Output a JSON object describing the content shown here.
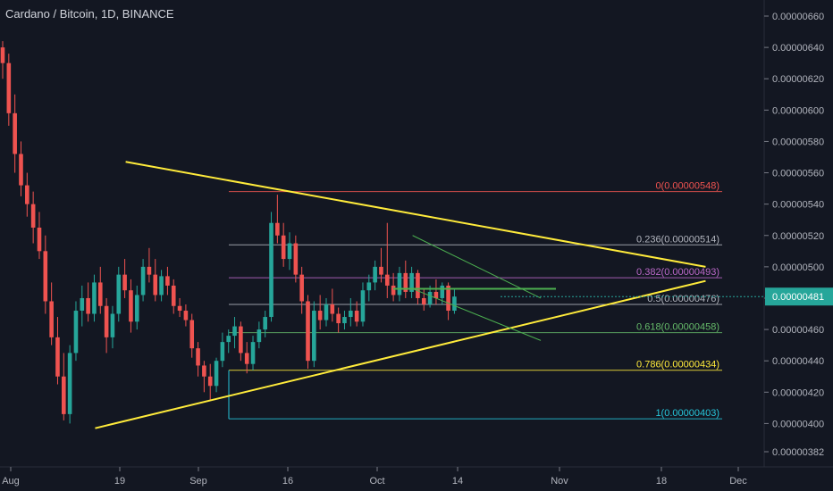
{
  "header": {
    "title": "Cardano / Bitcoin, 1D, BINANCE"
  },
  "colors": {
    "background": "#131722",
    "up": "#26a69a",
    "down": "#ef5350",
    "trendline": "#ffeb3b",
    "price_tag": "#26a69a"
  },
  "chart_data": {
    "type": "candlestick",
    "title": "Cardano / Bitcoin, 1D, BINANCE",
    "xlabel": "",
    "ylabel": "",
    "ylim": [
      3.78e-06,
      6.68e-06
    ],
    "yticks": [
      "0.00000660",
      "0.00000640",
      "0.00000620",
      "0.00000600",
      "0.00000580",
      "0.00000560",
      "0.00000540",
      "0.00000520",
      "0.00000500",
      "0.00000480",
      "0.00000460",
      "0.00000440",
      "0.00000420",
      "0.00000400",
      "0.00000382"
    ],
    "xticks": [
      "Aug",
      "19",
      "Sep",
      "16",
      "Oct",
      "14",
      "Nov",
      "18",
      "Dec"
    ],
    "grid": false,
    "last_price": "0.00000481",
    "candles_ohlc": [
      [
        6.4e-06,
        6.44e-06,
        6.2e-06,
        6.3e-06
      ],
      [
        6.3e-06,
        6.36e-06,
        5.9e-06,
        5.98e-06
      ],
      [
        5.98e-06,
        6.1e-06,
        5.6e-06,
        5.72e-06
      ],
      [
        5.72e-06,
        5.8e-06,
        5.45e-06,
        5.52e-06
      ],
      [
        5.52e-06,
        5.6e-06,
        5.32e-06,
        5.4e-06
      ],
      [
        5.4e-06,
        5.48e-06,
        5.15e-06,
        5.25e-06
      ],
      [
        5.25e-06,
        5.35e-06,
        5.05e-06,
        5.1e-06
      ],
      [
        5.1e-06,
        5.2e-06,
        4.7e-06,
        4.78e-06
      ],
      [
        4.78e-06,
        4.9e-06,
        4.5e-06,
        4.55e-06
      ],
      [
        4.55e-06,
        4.68e-06,
        4.25e-06,
        4.3e-06
      ],
      [
        4.3e-06,
        4.45e-06,
        4.02e-06,
        4.06e-06
      ],
      [
        4.06e-06,
        4.5e-06,
        4e-06,
        4.45e-06
      ],
      [
        4.45e-06,
        4.78e-06,
        4.4e-06,
        4.72e-06
      ],
      [
        4.72e-06,
        4.88e-06,
        4.62e-06,
        4.8e-06
      ],
      [
        4.8e-06,
        4.9e-06,
        4.65e-06,
        4.7e-06
      ],
      [
        4.7e-06,
        4.95e-06,
        4.65e-06,
        4.9e-06
      ],
      [
        4.9e-06,
        5e-06,
        4.7e-06,
        4.75e-06
      ],
      [
        4.75e-06,
        4.8e-06,
        4.45e-06,
        4.55e-06
      ],
      [
        4.55e-06,
        4.75e-06,
        4.48e-06,
        4.7e-06
      ],
      [
        4.7e-06,
        5e-06,
        4.65e-06,
        4.95e-06
      ],
      [
        4.95e-06,
        5.05e-06,
        4.8e-06,
        4.85e-06
      ],
      [
        4.85e-06,
        4.92e-06,
        4.58e-06,
        4.65e-06
      ],
      [
        4.65e-06,
        4.88e-06,
        4.6e-06,
        4.82e-06
      ],
      [
        4.82e-06,
        5.05e-06,
        4.78e-06,
        5e-06
      ],
      [
        5e-06,
        5.12e-06,
        4.9e-06,
        4.95e-06
      ],
      [
        4.95e-06,
        5.05e-06,
        4.78e-06,
        4.82e-06
      ],
      [
        4.82e-06,
        4.98e-06,
        4.78e-06,
        4.94e-06
      ],
      [
        4.94e-06,
        5e-06,
        4.82e-06,
        4.88e-06
      ],
      [
        4.88e-06,
        4.92e-06,
        4.7e-06,
        4.75e-06
      ],
      [
        4.75e-06,
        4.8e-06,
        4.68e-06,
        4.72e-06
      ],
      [
        4.72e-06,
        4.76e-06,
        4.62e-06,
        4.66e-06
      ],
      [
        4.66e-06,
        4.7e-06,
        4.42e-06,
        4.48e-06
      ],
      [
        4.48e-06,
        4.52e-06,
        4.3e-06,
        4.37e-06
      ],
      [
        4.37e-06,
        4.4e-06,
        4.2e-06,
        4.3e-06
      ],
      [
        4.3e-06,
        4.38e-06,
        4.15e-06,
        4.24e-06
      ],
      [
        4.24e-06,
        4.42e-06,
        4.2e-06,
        4.4e-06
      ],
      [
        4.4e-06,
        4.58e-06,
        4.36e-06,
        4.52e-06
      ],
      [
        4.52e-06,
        4.6e-06,
        4.45e-06,
        4.56e-06
      ],
      [
        4.56e-06,
        4.68e-06,
        4.48e-06,
        4.62e-06
      ],
      [
        4.62e-06,
        4.65e-06,
        4.4e-06,
        4.45e-06
      ],
      [
        4.45e-06,
        4.52e-06,
        4.32e-06,
        4.38e-06
      ],
      [
        4.38e-06,
        4.56e-06,
        4.34e-06,
        4.52e-06
      ],
      [
        4.52e-06,
        4.65e-06,
        4.48e-06,
        4.6e-06
      ],
      [
        4.6e-06,
        4.72e-06,
        4.55e-06,
        4.68e-06
      ],
      [
        4.68e-06,
        5.35e-06,
        4.65e-06,
        5.28e-06
      ],
      [
        5.28e-06,
        5.46e-06,
        5.15e-06,
        5.2e-06
      ],
      [
        5.2e-06,
        5.28e-06,
        5e-06,
        5.05e-06
      ],
      [
        5.05e-06,
        5.22e-06,
        4.98e-06,
        5.15e-06
      ],
      [
        5.15e-06,
        5.2e-06,
        4.9e-06,
        4.95e-06
      ],
      [
        4.95e-06,
        5e-06,
        4.7e-06,
        4.78e-06
      ],
      [
        4.78e-06,
        4.82e-06,
        4.35e-06,
        4.4e-06
      ],
      [
        4.4e-06,
        4.78e-06,
        4.36e-06,
        4.72e-06
      ],
      [
        4.72e-06,
        4.82e-06,
        4.6e-06,
        4.66e-06
      ],
      [
        4.66e-06,
        4.8e-06,
        4.62e-06,
        4.76e-06
      ],
      [
        4.76e-06,
        4.86e-06,
        4.65e-06,
        4.7e-06
      ],
      [
        4.7e-06,
        4.74e-06,
        4.58e-06,
        4.64e-06
      ],
      [
        4.64e-06,
        4.72e-06,
        4.6e-06,
        4.68e-06
      ],
      [
        4.68e-06,
        4.8e-06,
        4.62e-06,
        4.72e-06
      ],
      [
        4.72e-06,
        4.78e-06,
        4.62e-06,
        4.65e-06
      ],
      [
        4.65e-06,
        4.9e-06,
        4.62e-06,
        4.85e-06
      ],
      [
        4.85e-06,
        4.95e-06,
        4.78e-06,
        4.9e-06
      ],
      [
        4.9e-06,
        5.04e-06,
        4.85e-06,
        5e-06
      ],
      [
        5e-06,
        5.12e-06,
        4.9e-06,
        4.95e-06
      ],
      [
        4.95e-06,
        5.28e-06,
        4.8e-06,
        4.88e-06
      ],
      [
        4.88e-06,
        4.96e-06,
        4.78e-06,
        4.82e-06
      ],
      [
        4.82e-06,
        5e-06,
        4.78e-06,
        4.96e-06
      ],
      [
        4.96e-06,
        5.04e-06,
        4.8e-06,
        4.84e-06
      ],
      [
        4.84e-06,
        5e-06,
        4.8e-06,
        4.96e-06
      ],
      [
        4.96e-06,
        4.98e-06,
        4.76e-06,
        4.8e-06
      ],
      [
        4.8e-06,
        4.86e-06,
        4.72e-06,
        4.76e-06
      ],
      [
        4.76e-06,
        4.88e-06,
        4.74e-06,
        4.84e-06
      ],
      [
        4.84e-06,
        4.92e-06,
        4.76e-06,
        4.8e-06
      ],
      [
        4.8e-06,
        4.9e-06,
        4.76e-06,
        4.88e-06
      ],
      [
        4.88e-06,
        4.9e-06,
        4.66e-06,
        4.72e-06
      ],
      [
        4.72e-06,
        4.86e-06,
        4.7e-06,
        4.81e-06
      ]
    ],
    "trendlines": [
      {
        "name": "upper",
        "from": [
          "Aug 19",
          5.67e-06
        ],
        "to": [
          "Nov 22",
          5e-06
        ]
      },
      {
        "name": "lower",
        "from": [
          "Aug 14",
          3.97e-06
        ],
        "to": [
          "Nov 22",
          4.91e-06
        ]
      },
      {
        "name": "channel-top",
        "from": [
          "Oct 5",
          5.2e-06
        ],
        "to": [
          "Oct 26",
          4.8e-06
        ]
      },
      {
        "name": "channel-bottom",
        "from": [
          "Oct 5",
          4.86e-06
        ],
        "to": [
          "Oct 26",
          4.53e-06
        ]
      }
    ],
    "fib_levels": [
      {
        "label": "0(0.00000548)",
        "value": 5.48e-06,
        "color": "#ef5350"
      },
      {
        "label": "0.236(0.00000514)",
        "value": 5.14e-06,
        "color": "#b2b5be"
      },
      {
        "label": "0.382(0.00000493)",
        "value": 4.93e-06,
        "color": "#ba68c8"
      },
      {
        "label": "0.5(0.00000476)",
        "value": 4.76e-06,
        "color": "#b2b5be"
      },
      {
        "label": "0.618(0.00000458)",
        "value": 4.58e-06,
        "color": "#66bb6a"
      },
      {
        "label": "0.786(0.00000434)",
        "value": 4.34e-06,
        "color": "#ffeb3b"
      },
      {
        "label": "1(0.00000403)",
        "value": 4.03e-06,
        "color": "#26c6da"
      }
    ]
  }
}
